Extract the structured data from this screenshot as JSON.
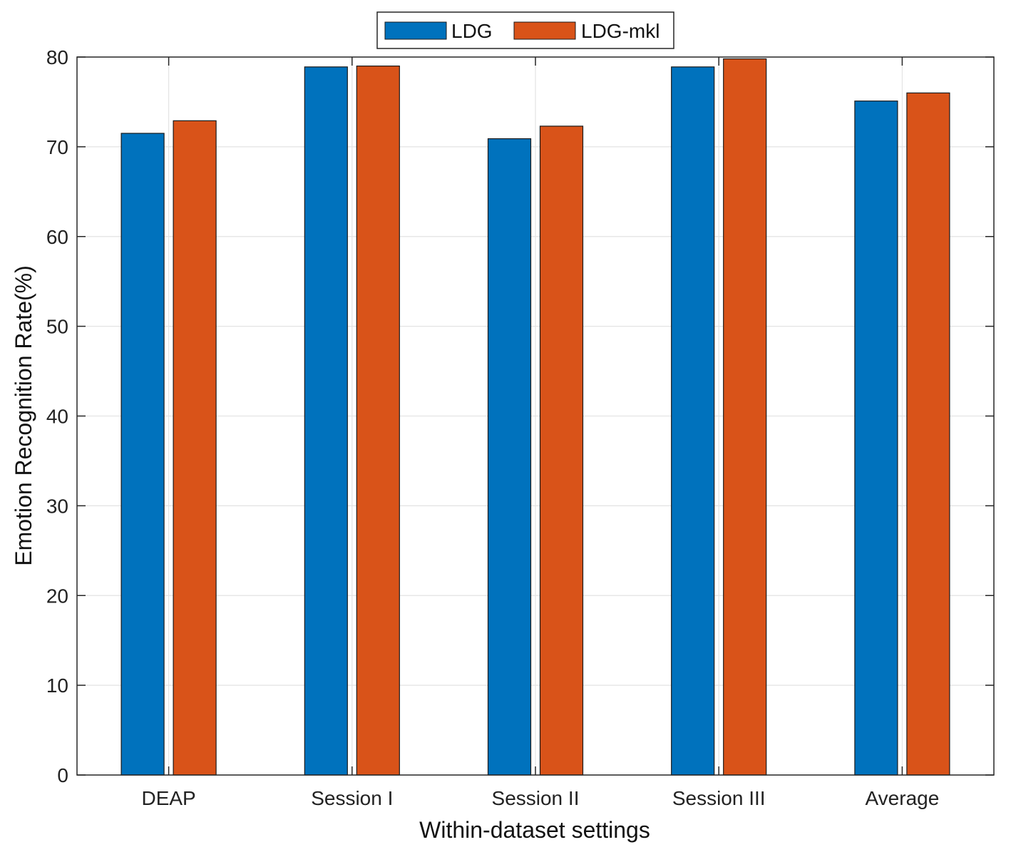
{
  "chart_data": {
    "type": "bar",
    "title": "",
    "xlabel": "Within-dataset settings",
    "ylabel": "Emotion Recognition Rate(%)",
    "ylim": [
      0,
      80
    ],
    "yticks": [
      "0",
      "10",
      "20",
      "30",
      "40",
      "50",
      "60",
      "70",
      "80"
    ],
    "grid": true,
    "legend_position": "top-center-outside",
    "categories": [
      "DEAP",
      "Session I",
      "Session II",
      "Session III",
      "Average"
    ],
    "series": [
      {
        "name": "LDG",
        "color": "#0072BD",
        "values": [
          71.5,
          78.9,
          70.9,
          78.9,
          75.1
        ]
      },
      {
        "name": "LDG-mkl",
        "color": "#D95319",
        "values": [
          72.9,
          79.0,
          72.3,
          79.8,
          76.0
        ]
      }
    ]
  }
}
